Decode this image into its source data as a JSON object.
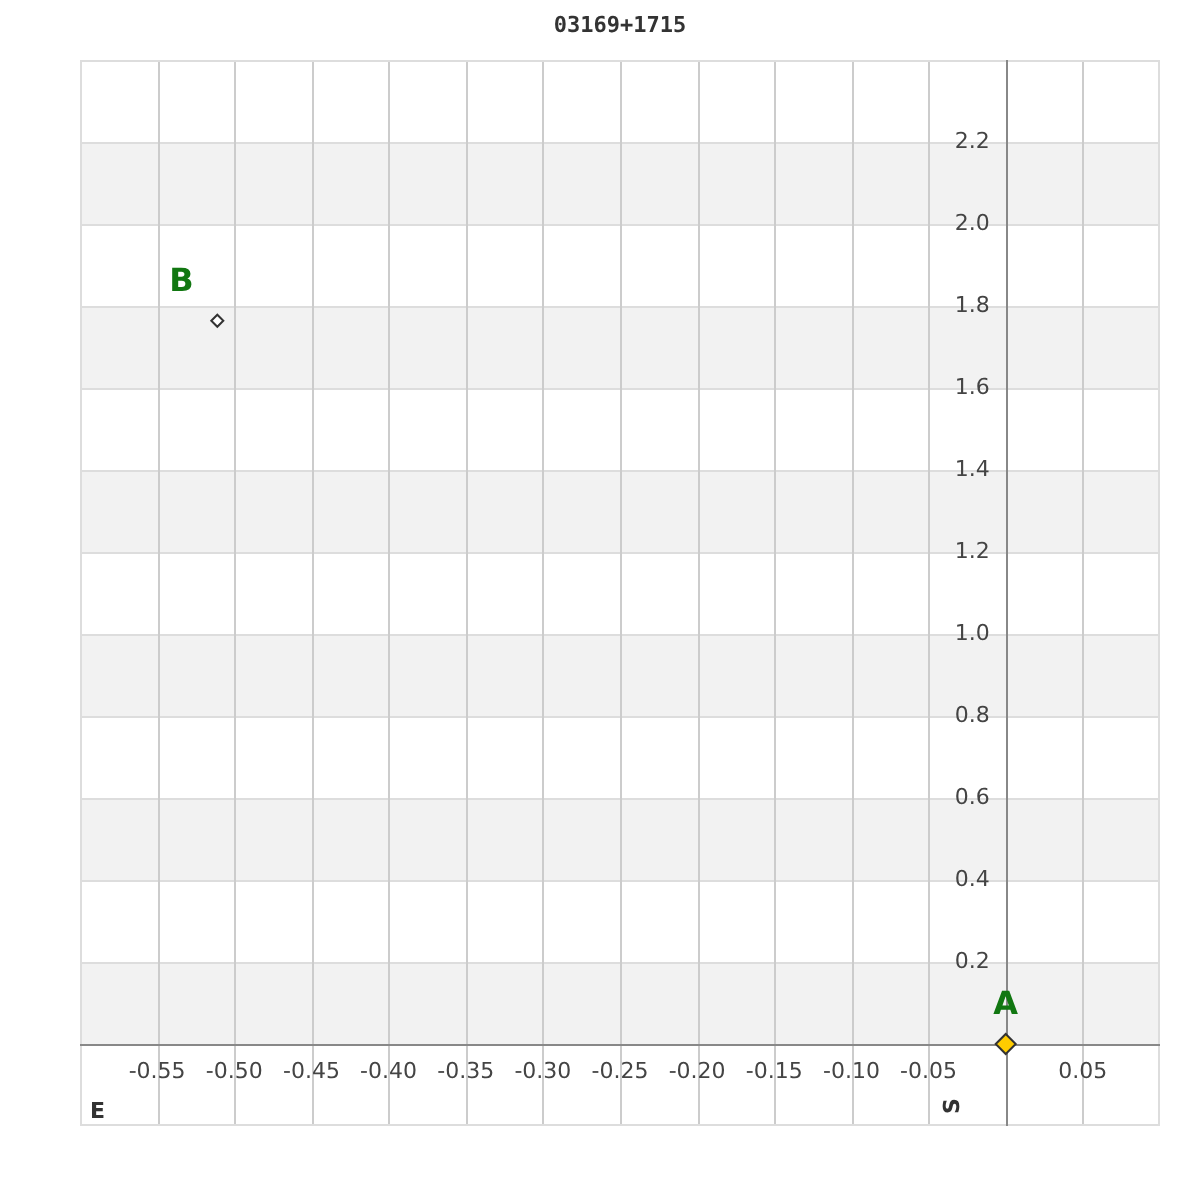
{
  "chart_data": {
    "type": "scatter",
    "title": "03169+1715",
    "xlabel": "E",
    "ylabel": "S",
    "series": [
      {
        "name": "A",
        "color": "#ffcc00",
        "x": [
          0
        ],
        "values": [
          0
        ]
      },
      {
        "name": "B",
        "color": "#ffffff",
        "x": [
          -0.511
        ],
        "values": [
          1.764
        ]
      }
    ],
    "xlim": [
      -0.6,
      0.1
    ],
    "xticks": [
      -0.55,
      {
        "value": -0.5,
        "label": "-0.50"
      },
      -0.45,
      {
        "value": -0.4,
        "label": "-0.40"
      },
      -0.35,
      {
        "value": -0.3,
        "label": "-0.30"
      },
      -0.25,
      {
        "value": -0.2,
        "label": "-0.20"
      },
      -0.15,
      {
        "value": -0.1,
        "label": "-0.10"
      },
      -0.05,
      {
        "value": 0,
        "label": null
      },
      0.05
    ],
    "ylim": [
      -0.2,
      2.4
    ],
    "yticks": [
      {
        "value": 0,
        "label": null
      },
      0.2,
      0.4,
      0.6,
      0.8,
      {
        "value": 1,
        "label": "1.0"
      },
      1.2,
      1.4,
      1.6,
      1.8,
      {
        "value": 2,
        "label": "2.0"
      },
      2.2
    ],
    "grid": true,
    "marker": "diamond"
  }
}
